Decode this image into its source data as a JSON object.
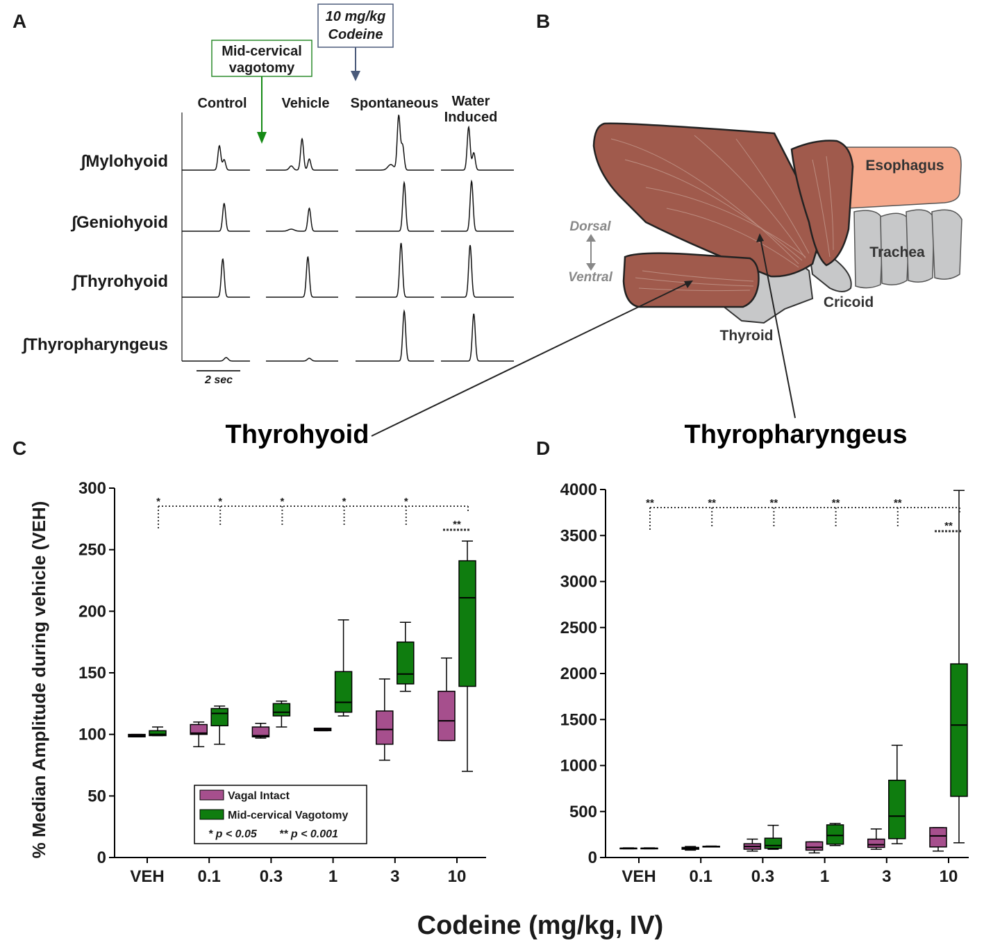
{
  "panel_letters": [
    "A",
    "B",
    "C",
    "D"
  ],
  "panel_a": {
    "codeine_box": [
      "10 mg/kg",
      "Codeine"
    ],
    "vagotomy_box": [
      "Mid-cervical",
      "vagotomy"
    ],
    "columns": [
      "Control",
      "Vehicle",
      "Spontaneous"
    ],
    "water_induced": [
      "Water",
      "Induced"
    ],
    "muscles": [
      "∫Mylohyoid",
      "∫Geniohyoid",
      "∫Thyrohyoid",
      "∫Thyropharyngeus"
    ],
    "scale_bar": "2 sec"
  },
  "panel_b": {
    "structures": [
      "Esophagus",
      "Trachea",
      "Cricoid",
      "Thyroid"
    ],
    "orientation": [
      "Dorsal",
      "Ventral"
    ],
    "callouts": [
      "Thyrohyoid",
      "Thyropharyngeus"
    ]
  },
  "x_label": "Codeine (mg/kg, IV)",
  "chart_data": [
    {
      "type": "box",
      "y_label": "% Median Amplitude during vehicle (VEH)",
      "categories": [
        "VEH",
        "0.1",
        "0.3",
        "1",
        "3",
        "10"
      ],
      "ylim": [
        0,
        300
      ],
      "yticks": [
        0,
        50,
        100,
        150,
        200,
        250,
        300
      ],
      "series": [
        {
          "name": "Vagal Intact",
          "color": "#a64f8d",
          "values": [
            {
              "min": 98,
              "q1": 98,
              "median": 99,
              "q3": 100,
              "max": 100
            },
            {
              "min": 90,
              "q1": 100,
              "median": 101,
              "q3": 108,
              "max": 110
            },
            {
              "min": 97,
              "q1": 98,
              "median": 99,
              "q3": 106,
              "max": 109
            },
            {
              "min": 103,
              "q1": 103,
              "median": 104,
              "q3": 105,
              "max": 105
            },
            {
              "min": 79,
              "q1": 92,
              "median": 104,
              "q3": 119,
              "max": 145
            },
            {
              "min": 95,
              "q1": 95,
              "median": 111,
              "q3": 135,
              "max": 162
            }
          ]
        },
        {
          "name": "Mid-cervical Vagotomy",
          "color": "#0f7d0f",
          "values": [
            {
              "min": 99,
              "q1": 99,
              "median": 100,
              "q3": 103,
              "max": 106
            },
            {
              "min": 92,
              "q1": 107,
              "median": 117,
              "q3": 121,
              "max": 123
            },
            {
              "min": 106,
              "q1": 115,
              "median": 118,
              "q3": 125,
              "max": 127
            },
            {
              "min": 115,
              "q1": 118,
              "median": 126,
              "q3": 151,
              "max": 193
            },
            {
              "min": 135,
              "q1": 141,
              "median": 149,
              "q3": 175,
              "max": 191
            },
            {
              "min": 70,
              "q1": 139,
              "median": 211,
              "q3": 241,
              "max": 257
            }
          ]
        }
      ],
      "significance": {
        "vs_veh": [
          "*",
          "*",
          "*",
          "*",
          "*"
        ],
        "pair": "**"
      },
      "p_note": [
        "* p < 0.05",
        "** p < 0.001"
      ]
    },
    {
      "type": "box",
      "categories": [
        "VEH",
        "0.1",
        "0.3",
        "1",
        "3",
        "10"
      ],
      "ylim": [
        0,
        4000
      ],
      "yticks": [
        0,
        500,
        1000,
        1500,
        2000,
        2500,
        3000,
        3500,
        4000
      ],
      "series": [
        {
          "name": "Vagal Intact",
          "color": "#a64f8d",
          "values": [
            {
              "min": 95,
              "q1": 98,
              "median": 100,
              "q3": 102,
              "max": 105
            },
            {
              "min": 80,
              "q1": 90,
              "median": 100,
              "q3": 110,
              "max": 120
            },
            {
              "min": 70,
              "q1": 90,
              "median": 120,
              "q3": 150,
              "max": 200
            },
            {
              "min": 50,
              "q1": 80,
              "median": 110,
              "q3": 170,
              "max": 170
            },
            {
              "min": 90,
              "q1": 110,
              "median": 140,
              "q3": 200,
              "max": 310
            },
            {
              "min": 70,
              "q1": 115,
              "median": 235,
              "q3": 325,
              "max": 325
            }
          ]
        },
        {
          "name": "Mid-cervical Vagotomy",
          "color": "#0f7d0f",
          "values": [
            {
              "min": 95,
              "q1": 98,
              "median": 100,
              "q3": 102,
              "max": 105
            },
            {
              "min": 115,
              "q1": 118,
              "median": 120,
              "q3": 122,
              "max": 125
            },
            {
              "min": 90,
              "q1": 100,
              "median": 130,
              "q3": 210,
              "max": 350
            },
            {
              "min": 130,
              "q1": 145,
              "median": 240,
              "q3": 355,
              "max": 370
            },
            {
              "min": 150,
              "q1": 205,
              "median": 450,
              "q3": 840,
              "max": 1220
            },
            {
              "min": 160,
              "q1": 665,
              "median": 1440,
              "q3": 2105,
              "max": 3990
            }
          ]
        }
      ],
      "significance": {
        "vs_veh": [
          "**",
          "**",
          "**",
          "**",
          "**"
        ],
        "pair": "**"
      }
    }
  ]
}
